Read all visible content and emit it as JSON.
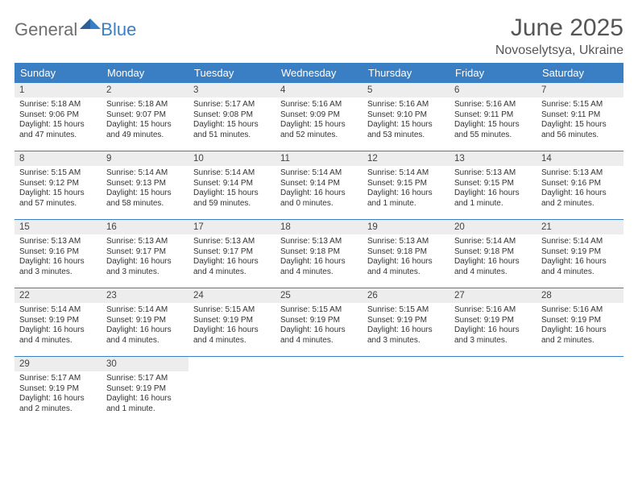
{
  "branding": {
    "text1": "General",
    "text2": "Blue",
    "gray": "#6e6e6e",
    "blue": "#3a7fc4"
  },
  "header": {
    "title": "June 2025",
    "location": "Novoselytsya, Ukraine"
  },
  "theme": {
    "header_bg": "#3a7fc4",
    "header_fg": "#ffffff",
    "daynum_bg": "#ededed",
    "border": "#3a7fc4",
    "body_fontsize": 10
  },
  "weekdays": [
    "Sunday",
    "Monday",
    "Tuesday",
    "Wednesday",
    "Thursday",
    "Friday",
    "Saturday"
  ],
  "weeks": [
    [
      {
        "day": "1",
        "sunrise": "Sunrise: 5:18 AM",
        "sunset": "Sunset: 9:06 PM",
        "daylight1": "Daylight: 15 hours",
        "daylight2": "and 47 minutes."
      },
      {
        "day": "2",
        "sunrise": "Sunrise: 5:18 AM",
        "sunset": "Sunset: 9:07 PM",
        "daylight1": "Daylight: 15 hours",
        "daylight2": "and 49 minutes."
      },
      {
        "day": "3",
        "sunrise": "Sunrise: 5:17 AM",
        "sunset": "Sunset: 9:08 PM",
        "daylight1": "Daylight: 15 hours",
        "daylight2": "and 51 minutes."
      },
      {
        "day": "4",
        "sunrise": "Sunrise: 5:16 AM",
        "sunset": "Sunset: 9:09 PM",
        "daylight1": "Daylight: 15 hours",
        "daylight2": "and 52 minutes."
      },
      {
        "day": "5",
        "sunrise": "Sunrise: 5:16 AM",
        "sunset": "Sunset: 9:10 PM",
        "daylight1": "Daylight: 15 hours",
        "daylight2": "and 53 minutes."
      },
      {
        "day": "6",
        "sunrise": "Sunrise: 5:16 AM",
        "sunset": "Sunset: 9:11 PM",
        "daylight1": "Daylight: 15 hours",
        "daylight2": "and 55 minutes."
      },
      {
        "day": "7",
        "sunrise": "Sunrise: 5:15 AM",
        "sunset": "Sunset: 9:11 PM",
        "daylight1": "Daylight: 15 hours",
        "daylight2": "and 56 minutes."
      }
    ],
    [
      {
        "day": "8",
        "sunrise": "Sunrise: 5:15 AM",
        "sunset": "Sunset: 9:12 PM",
        "daylight1": "Daylight: 15 hours",
        "daylight2": "and 57 minutes."
      },
      {
        "day": "9",
        "sunrise": "Sunrise: 5:14 AM",
        "sunset": "Sunset: 9:13 PM",
        "daylight1": "Daylight: 15 hours",
        "daylight2": "and 58 minutes."
      },
      {
        "day": "10",
        "sunrise": "Sunrise: 5:14 AM",
        "sunset": "Sunset: 9:14 PM",
        "daylight1": "Daylight: 15 hours",
        "daylight2": "and 59 minutes."
      },
      {
        "day": "11",
        "sunrise": "Sunrise: 5:14 AM",
        "sunset": "Sunset: 9:14 PM",
        "daylight1": "Daylight: 16 hours",
        "daylight2": "and 0 minutes."
      },
      {
        "day": "12",
        "sunrise": "Sunrise: 5:14 AM",
        "sunset": "Sunset: 9:15 PM",
        "daylight1": "Daylight: 16 hours",
        "daylight2": "and 1 minute."
      },
      {
        "day": "13",
        "sunrise": "Sunrise: 5:13 AM",
        "sunset": "Sunset: 9:15 PM",
        "daylight1": "Daylight: 16 hours",
        "daylight2": "and 1 minute."
      },
      {
        "day": "14",
        "sunrise": "Sunrise: 5:13 AM",
        "sunset": "Sunset: 9:16 PM",
        "daylight1": "Daylight: 16 hours",
        "daylight2": "and 2 minutes."
      }
    ],
    [
      {
        "day": "15",
        "sunrise": "Sunrise: 5:13 AM",
        "sunset": "Sunset: 9:16 PM",
        "daylight1": "Daylight: 16 hours",
        "daylight2": "and 3 minutes."
      },
      {
        "day": "16",
        "sunrise": "Sunrise: 5:13 AM",
        "sunset": "Sunset: 9:17 PM",
        "daylight1": "Daylight: 16 hours",
        "daylight2": "and 3 minutes."
      },
      {
        "day": "17",
        "sunrise": "Sunrise: 5:13 AM",
        "sunset": "Sunset: 9:17 PM",
        "daylight1": "Daylight: 16 hours",
        "daylight2": "and 4 minutes."
      },
      {
        "day": "18",
        "sunrise": "Sunrise: 5:13 AM",
        "sunset": "Sunset: 9:18 PM",
        "daylight1": "Daylight: 16 hours",
        "daylight2": "and 4 minutes."
      },
      {
        "day": "19",
        "sunrise": "Sunrise: 5:13 AM",
        "sunset": "Sunset: 9:18 PM",
        "daylight1": "Daylight: 16 hours",
        "daylight2": "and 4 minutes."
      },
      {
        "day": "20",
        "sunrise": "Sunrise: 5:14 AM",
        "sunset": "Sunset: 9:18 PM",
        "daylight1": "Daylight: 16 hours",
        "daylight2": "and 4 minutes."
      },
      {
        "day": "21",
        "sunrise": "Sunrise: 5:14 AM",
        "sunset": "Sunset: 9:19 PM",
        "daylight1": "Daylight: 16 hours",
        "daylight2": "and 4 minutes."
      }
    ],
    [
      {
        "day": "22",
        "sunrise": "Sunrise: 5:14 AM",
        "sunset": "Sunset: 9:19 PM",
        "daylight1": "Daylight: 16 hours",
        "daylight2": "and 4 minutes."
      },
      {
        "day": "23",
        "sunrise": "Sunrise: 5:14 AM",
        "sunset": "Sunset: 9:19 PM",
        "daylight1": "Daylight: 16 hours",
        "daylight2": "and 4 minutes."
      },
      {
        "day": "24",
        "sunrise": "Sunrise: 5:15 AM",
        "sunset": "Sunset: 9:19 PM",
        "daylight1": "Daylight: 16 hours",
        "daylight2": "and 4 minutes."
      },
      {
        "day": "25",
        "sunrise": "Sunrise: 5:15 AM",
        "sunset": "Sunset: 9:19 PM",
        "daylight1": "Daylight: 16 hours",
        "daylight2": "and 4 minutes."
      },
      {
        "day": "26",
        "sunrise": "Sunrise: 5:15 AM",
        "sunset": "Sunset: 9:19 PM",
        "daylight1": "Daylight: 16 hours",
        "daylight2": "and 3 minutes."
      },
      {
        "day": "27",
        "sunrise": "Sunrise: 5:16 AM",
        "sunset": "Sunset: 9:19 PM",
        "daylight1": "Daylight: 16 hours",
        "daylight2": "and 3 minutes."
      },
      {
        "day": "28",
        "sunrise": "Sunrise: 5:16 AM",
        "sunset": "Sunset: 9:19 PM",
        "daylight1": "Daylight: 16 hours",
        "daylight2": "and 2 minutes."
      }
    ],
    [
      {
        "day": "29",
        "sunrise": "Sunrise: 5:17 AM",
        "sunset": "Sunset: 9:19 PM",
        "daylight1": "Daylight: 16 hours",
        "daylight2": "and 2 minutes."
      },
      {
        "day": "30",
        "sunrise": "Sunrise: 5:17 AM",
        "sunset": "Sunset: 9:19 PM",
        "daylight1": "Daylight: 16 hours",
        "daylight2": "and 1 minute."
      },
      null,
      null,
      null,
      null,
      null
    ]
  ]
}
